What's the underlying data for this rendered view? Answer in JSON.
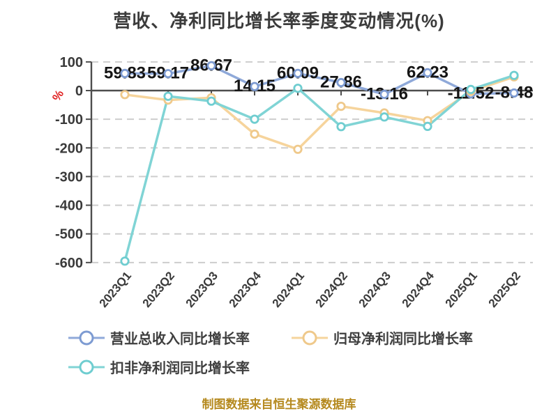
{
  "title": "营收、净利同比增长率季度变动情况(%)",
  "y_axis_unit": "%",
  "footer": "制图数据来自恒生聚源数据库",
  "colors": {
    "title_text": "#3b3b3b",
    "axis_line": "#4d4d4d",
    "gridline": "#cdcdcd",
    "tick_label": "#3a3a3a",
    "data_label": "#151515",
    "unit_mark_red": "#e02020",
    "footer_text": "#b5891e",
    "series_blue": "#8fa9d9",
    "series_orange": "#f6d49c",
    "series_teal": "#80d4d5"
  },
  "chart_data": {
    "type": "line",
    "title": "营收、净利同比增长率季度变动情况(%)",
    "categories": [
      "2023Q1",
      "2023Q2",
      "2023Q3",
      "2023Q4",
      "2024Q1",
      "2024Q2",
      "2024Q3",
      "2024Q4",
      "2025Q1",
      "2025Q2"
    ],
    "series": [
      {
        "name": "营业总收入同比增长率",
        "color": "#8fa9d9",
        "marker_ring": "#7d9bd2",
        "values": [
          59.83,
          59.17,
          86.67,
          14.15,
          60.09,
          27.86,
          -13.16,
          62.23,
          -11.52,
          -8.48
        ],
        "point_labels": [
          "59.83",
          "59.17",
          "86.67",
          "14.15",
          "60.09",
          "27.86",
          "-13.16",
          "62.23",
          "-11.52",
          "-8.48"
        ]
      },
      {
        "name": "归母净利润同比增长率",
        "color": "#f6d49c",
        "marker_ring": "#efc98b",
        "values": [
          -14,
          -33,
          -25,
          -152,
          -205,
          -55,
          -78,
          -105,
          -3,
          48
        ]
      },
      {
        "name": "扣非净利润同比增长率",
        "color": "#80d4d5",
        "marker_ring": "#6fcdd0",
        "values": [
          -595,
          -20,
          -37,
          -100,
          8,
          -126,
          -92,
          -125,
          4,
          53
        ]
      }
    ],
    "ylim": [
      -600,
      100
    ],
    "yticks": [
      100,
      0,
      -100,
      -200,
      -300,
      -400,
      -500,
      -600
    ],
    "grid": true,
    "gridline_style": "dashed",
    "zero_line": "solid",
    "rotated_x_labels": true,
    "legend_position": "bottom-left",
    "footer": "制图数据来自恒生聚源数据库"
  }
}
